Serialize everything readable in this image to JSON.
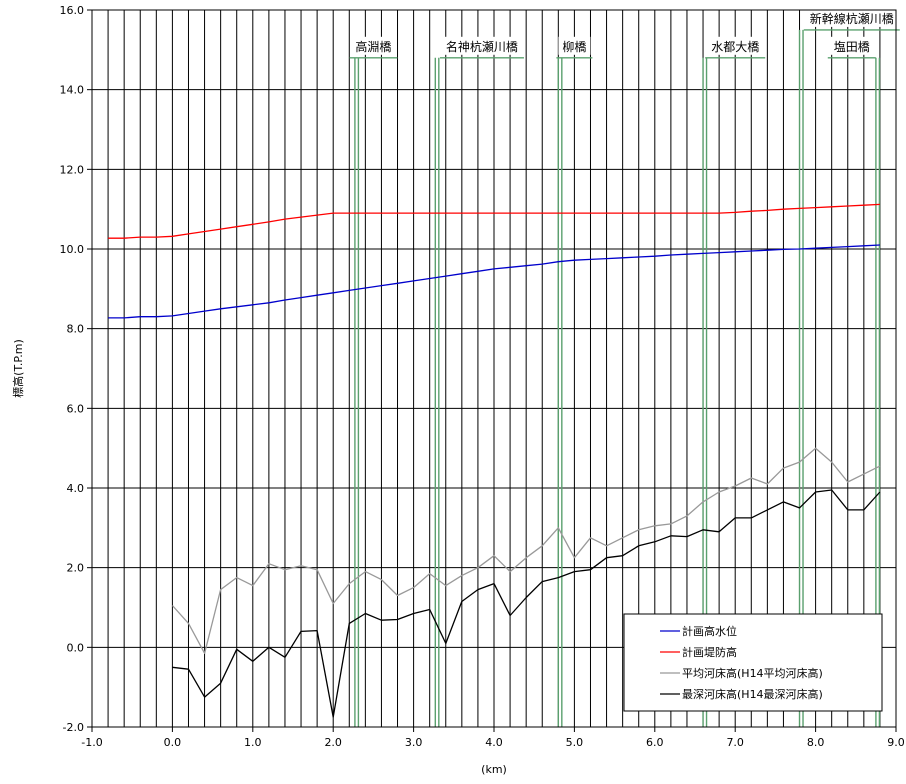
{
  "chart_data": {
    "type": "line",
    "xlabel": "(km)",
    "ylabel": "標高(T.P.m)",
    "xlim": [
      -1.0,
      9.0
    ],
    "ylim": [
      -2.0,
      16.0
    ],
    "x_ticks": [
      -1.0,
      0.0,
      1.0,
      2.0,
      3.0,
      4.0,
      5.0,
      6.0,
      7.0,
      8.0,
      9.0
    ],
    "x_tick_labels": [
      "-1.0",
      "0.0",
      "1.0",
      "2.0",
      "3.0",
      "4.0",
      "5.0",
      "6.0",
      "7.0",
      "8.0",
      "9.0"
    ],
    "y_ticks": [
      -2.0,
      0.0,
      2.0,
      4.0,
      6.0,
      8.0,
      10.0,
      12.0,
      14.0,
      16.0
    ],
    "y_tick_labels": [
      "-2.0",
      "0.0",
      "2.0",
      "4.0",
      "6.0",
      "8.0",
      "10.0",
      "12.0",
      "14.0",
      "16.0"
    ],
    "grid": {
      "vertical_interval_km": 0.2,
      "horizontal_interval": 2.0
    },
    "legend_position": "bottom-right",
    "series": [
      {
        "name": "計画高水位",
        "color": "#0000cc",
        "x": [
          -0.8,
          -0.6,
          -0.4,
          -0.2,
          0.0,
          0.2,
          0.4,
          0.6,
          0.8,
          1.0,
          1.2,
          1.4,
          1.6,
          1.8,
          2.0,
          2.2,
          2.4,
          2.6,
          2.8,
          3.0,
          3.2,
          3.4,
          3.6,
          3.8,
          4.0,
          4.2,
          4.4,
          4.6,
          4.8,
          5.0,
          5.2,
          5.4,
          5.6,
          5.8,
          6.0,
          6.2,
          6.4,
          6.6,
          6.8,
          7.0,
          7.2,
          7.4,
          7.6,
          7.8,
          8.0,
          8.2,
          8.4,
          8.6,
          8.8
        ],
        "values": [
          8.27,
          8.27,
          8.3,
          8.3,
          8.32,
          8.38,
          8.44,
          8.5,
          8.55,
          8.6,
          8.65,
          8.72,
          8.78,
          8.84,
          8.9,
          8.96,
          9.02,
          9.08,
          9.14,
          9.2,
          9.26,
          9.32,
          9.38,
          9.44,
          9.5,
          9.54,
          9.58,
          9.62,
          9.68,
          9.72,
          9.74,
          9.76,
          9.78,
          9.8,
          9.82,
          9.85,
          9.87,
          9.89,
          9.91,
          9.93,
          9.95,
          9.97,
          9.99,
          10.0,
          10.02,
          10.04,
          10.06,
          10.08,
          10.1
        ]
      },
      {
        "name": "計画堤防高",
        "color": "#ff0000",
        "x": [
          -0.8,
          -0.6,
          -0.4,
          -0.2,
          0.0,
          0.2,
          0.4,
          0.6,
          0.8,
          1.0,
          1.2,
          1.4,
          1.6,
          1.8,
          2.0,
          2.2,
          2.4,
          2.6,
          2.8,
          3.0,
          3.2,
          3.4,
          3.6,
          3.8,
          4.0,
          4.2,
          4.4,
          4.6,
          4.8,
          5.0,
          5.2,
          5.4,
          5.6,
          5.8,
          6.0,
          6.2,
          6.4,
          6.6,
          6.8,
          7.0,
          7.2,
          7.4,
          7.6,
          7.8,
          8.0,
          8.2,
          8.4,
          8.6,
          8.8
        ],
        "values": [
          10.27,
          10.27,
          10.3,
          10.3,
          10.32,
          10.38,
          10.44,
          10.5,
          10.56,
          10.62,
          10.68,
          10.75,
          10.8,
          10.85,
          10.9,
          10.9,
          10.9,
          10.9,
          10.9,
          10.9,
          10.9,
          10.9,
          10.9,
          10.9,
          10.9,
          10.9,
          10.9,
          10.9,
          10.9,
          10.9,
          10.9,
          10.9,
          10.9,
          10.9,
          10.9,
          10.9,
          10.9,
          10.9,
          10.9,
          10.92,
          10.95,
          10.97,
          11.0,
          11.02,
          11.04,
          11.06,
          11.08,
          11.1,
          11.12
        ]
      },
      {
        "name": "平均河床高(H14平均河床高)",
        "color": "#999999",
        "x": [
          0.0,
          0.2,
          0.4,
          0.6,
          0.8,
          1.0,
          1.2,
          1.4,
          1.6,
          1.8,
          2.0,
          2.2,
          2.4,
          2.6,
          2.8,
          3.0,
          3.2,
          3.4,
          3.6,
          3.8,
          4.0,
          4.2,
          4.4,
          4.6,
          4.8,
          5.0,
          5.2,
          5.4,
          5.6,
          5.8,
          6.0,
          6.2,
          6.4,
          6.6,
          6.8,
          7.0,
          7.2,
          7.4,
          7.6,
          7.8,
          8.0,
          8.2,
          8.4,
          8.6,
          8.8
        ],
        "values": [
          1.05,
          0.6,
          -0.15,
          1.45,
          1.75,
          1.55,
          2.1,
          1.95,
          2.05,
          1.95,
          1.1,
          1.6,
          1.9,
          1.7,
          1.3,
          1.5,
          1.85,
          1.55,
          1.8,
          2.0,
          2.3,
          1.9,
          2.25,
          2.55,
          3.0,
          2.25,
          2.75,
          2.55,
          2.75,
          2.95,
          3.05,
          3.1,
          3.3,
          3.65,
          3.9,
          4.05,
          4.25,
          4.1,
          4.5,
          4.65,
          5.0,
          4.65,
          4.15,
          4.35,
          4.55
        ]
      },
      {
        "name": "最深河床高(H14最深河床高)",
        "color": "#000000",
        "x": [
          0.0,
          0.2,
          0.4,
          0.6,
          0.8,
          1.0,
          1.2,
          1.4,
          1.6,
          1.8,
          2.0,
          2.2,
          2.4,
          2.6,
          2.8,
          3.0,
          3.2,
          3.4,
          3.6,
          3.8,
          4.0,
          4.2,
          4.4,
          4.6,
          4.8,
          5.0,
          5.2,
          5.4,
          5.6,
          5.8,
          6.0,
          6.2,
          6.4,
          6.6,
          6.8,
          7.0,
          7.2,
          7.4,
          7.6,
          7.8,
          8.0,
          8.2,
          8.4,
          8.6,
          8.8
        ],
        "values": [
          -0.5,
          -0.55,
          -1.25,
          -0.9,
          -0.05,
          -0.35,
          0.0,
          -0.25,
          0.4,
          0.42,
          -1.75,
          0.6,
          0.85,
          0.68,
          0.7,
          0.85,
          0.95,
          0.1,
          1.15,
          1.45,
          1.6,
          0.8,
          1.25,
          1.65,
          1.75,
          1.9,
          1.95,
          2.25,
          2.3,
          2.55,
          2.65,
          2.8,
          2.78,
          2.95,
          2.9,
          3.25,
          3.25,
          3.45,
          3.65,
          3.5,
          3.9,
          3.95,
          3.45,
          3.45,
          3.9
        ]
      }
    ],
    "bridges": [
      {
        "label": "高淵橋",
        "x": 2.27,
        "label_center_x": 2.5,
        "label_y": 14.8
      },
      {
        "label": "名神杭瀬川橋",
        "x": 3.27,
        "label_center_x": 3.85,
        "label_y": 14.8
      },
      {
        "label": "柳橋",
        "x": 4.8,
        "label_center_x": 5.0,
        "label_y": 14.8
      },
      {
        "label": "水都大橋",
        "x": 6.6,
        "label_center_x": 7.0,
        "label_y": 14.8
      },
      {
        "label": "新幹線杭瀬川橋",
        "x": 7.8,
        "label_center_x": 8.45,
        "label_y": 15.5
      },
      {
        "label": "塩田橋",
        "x": 8.75,
        "label_center_x": 8.45,
        "label_y": 14.8
      }
    ],
    "bridge_color": "#5aa06e"
  }
}
